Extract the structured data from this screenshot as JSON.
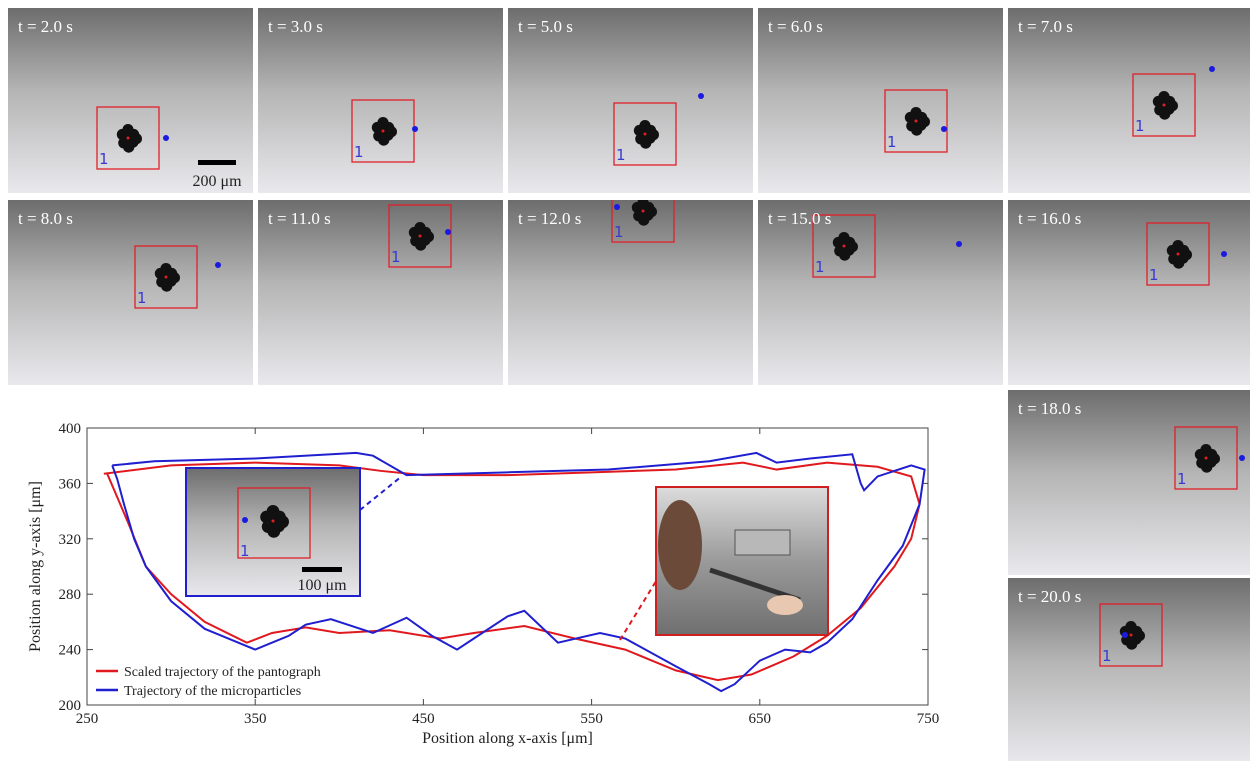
{
  "frames": [
    {
      "time": "t = 2.0 s",
      "track_id": "1",
      "scale_bar": "200 μm"
    },
    {
      "time": "t = 3.0 s",
      "track_id": "1"
    },
    {
      "time": "t = 5.0 s",
      "track_id": "1"
    },
    {
      "time": "t = 6.0 s",
      "track_id": "1"
    },
    {
      "time": "t = 7.0 s",
      "track_id": "1"
    },
    {
      "time": "t = 8.0 s",
      "track_id": "1"
    },
    {
      "time": "t = 11.0 s",
      "track_id": "1"
    },
    {
      "time": "t = 12.0 s",
      "track_id": "1"
    },
    {
      "time": "t = 15.0 s",
      "track_id": "1"
    },
    {
      "time": "t = 16.0 s",
      "track_id": "1"
    },
    {
      "time": "t = 18.0 s",
      "track_id": "1"
    },
    {
      "time": "t = 20.0 s",
      "track_id": "1"
    }
  ],
  "inset": {
    "scale_bar": "100 μm",
    "track_id": "1"
  },
  "chart_data": {
    "type": "line",
    "x_label": "Position along x-axis [μm]",
    "y_label": "Position along y-axis [μm]",
    "xlim": [
      250,
      750
    ],
    "xticks": [
      250,
      350,
      450,
      550,
      650,
      750
    ],
    "ylim": [
      200,
      400
    ],
    "yticks": [
      200,
      240,
      280,
      320,
      360,
      400
    ],
    "legend": "lower left",
    "series": [
      {
        "name": "Scaled trajectory of the pantograph",
        "color": "#e0191e",
        "x": [
          260,
          300,
          350,
          400,
          425,
          450,
          500,
          550,
          600,
          640,
          660,
          690,
          720,
          740,
          745,
          740,
          730,
          710,
          690,
          670,
          645,
          625,
          600,
          570,
          540,
          510,
          480,
          460,
          430,
          400,
          380,
          360,
          345,
          320,
          300,
          285,
          275,
          268,
          262
        ],
        "values": [
          367,
          373,
          375,
          373,
          369,
          366,
          366,
          368,
          370,
          375,
          370,
          375,
          372,
          365,
          345,
          320,
          300,
          270,
          250,
          235,
          222,
          218,
          225,
          240,
          248,
          257,
          252,
          248,
          254,
          252,
          256,
          252,
          245,
          260,
          280,
          300,
          330,
          350,
          367
        ]
      },
      {
        "name": "Trajectory of the microparticles",
        "color": "#1f1fd0",
        "x": [
          265,
          290,
          350,
          410,
          420,
          440,
          500,
          560,
          620,
          648,
          660,
          680,
          705,
          710,
          712,
          720,
          740,
          748,
          745,
          735,
          720,
          705,
          690,
          680,
          665,
          650,
          635,
          627,
          620,
          600,
          570,
          555,
          530,
          510,
          500,
          480,
          470,
          455,
          440,
          420,
          395,
          380,
          370,
          350,
          340,
          320,
          300,
          285,
          278,
          272,
          268,
          265
        ],
        "values": [
          373,
          376,
          378,
          382,
          380,
          366,
          368,
          370,
          376,
          382,
          375,
          378,
          381,
          360,
          355,
          365,
          373,
          370,
          345,
          315,
          290,
          262,
          245,
          238,
          240,
          232,
          215,
          210,
          215,
          228,
          248,
          252,
          245,
          268,
          264,
          248,
          240,
          250,
          263,
          252,
          262,
          258,
          250,
          240,
          245,
          255,
          275,
          300,
          320,
          345,
          363,
          373
        ]
      }
    ]
  }
}
